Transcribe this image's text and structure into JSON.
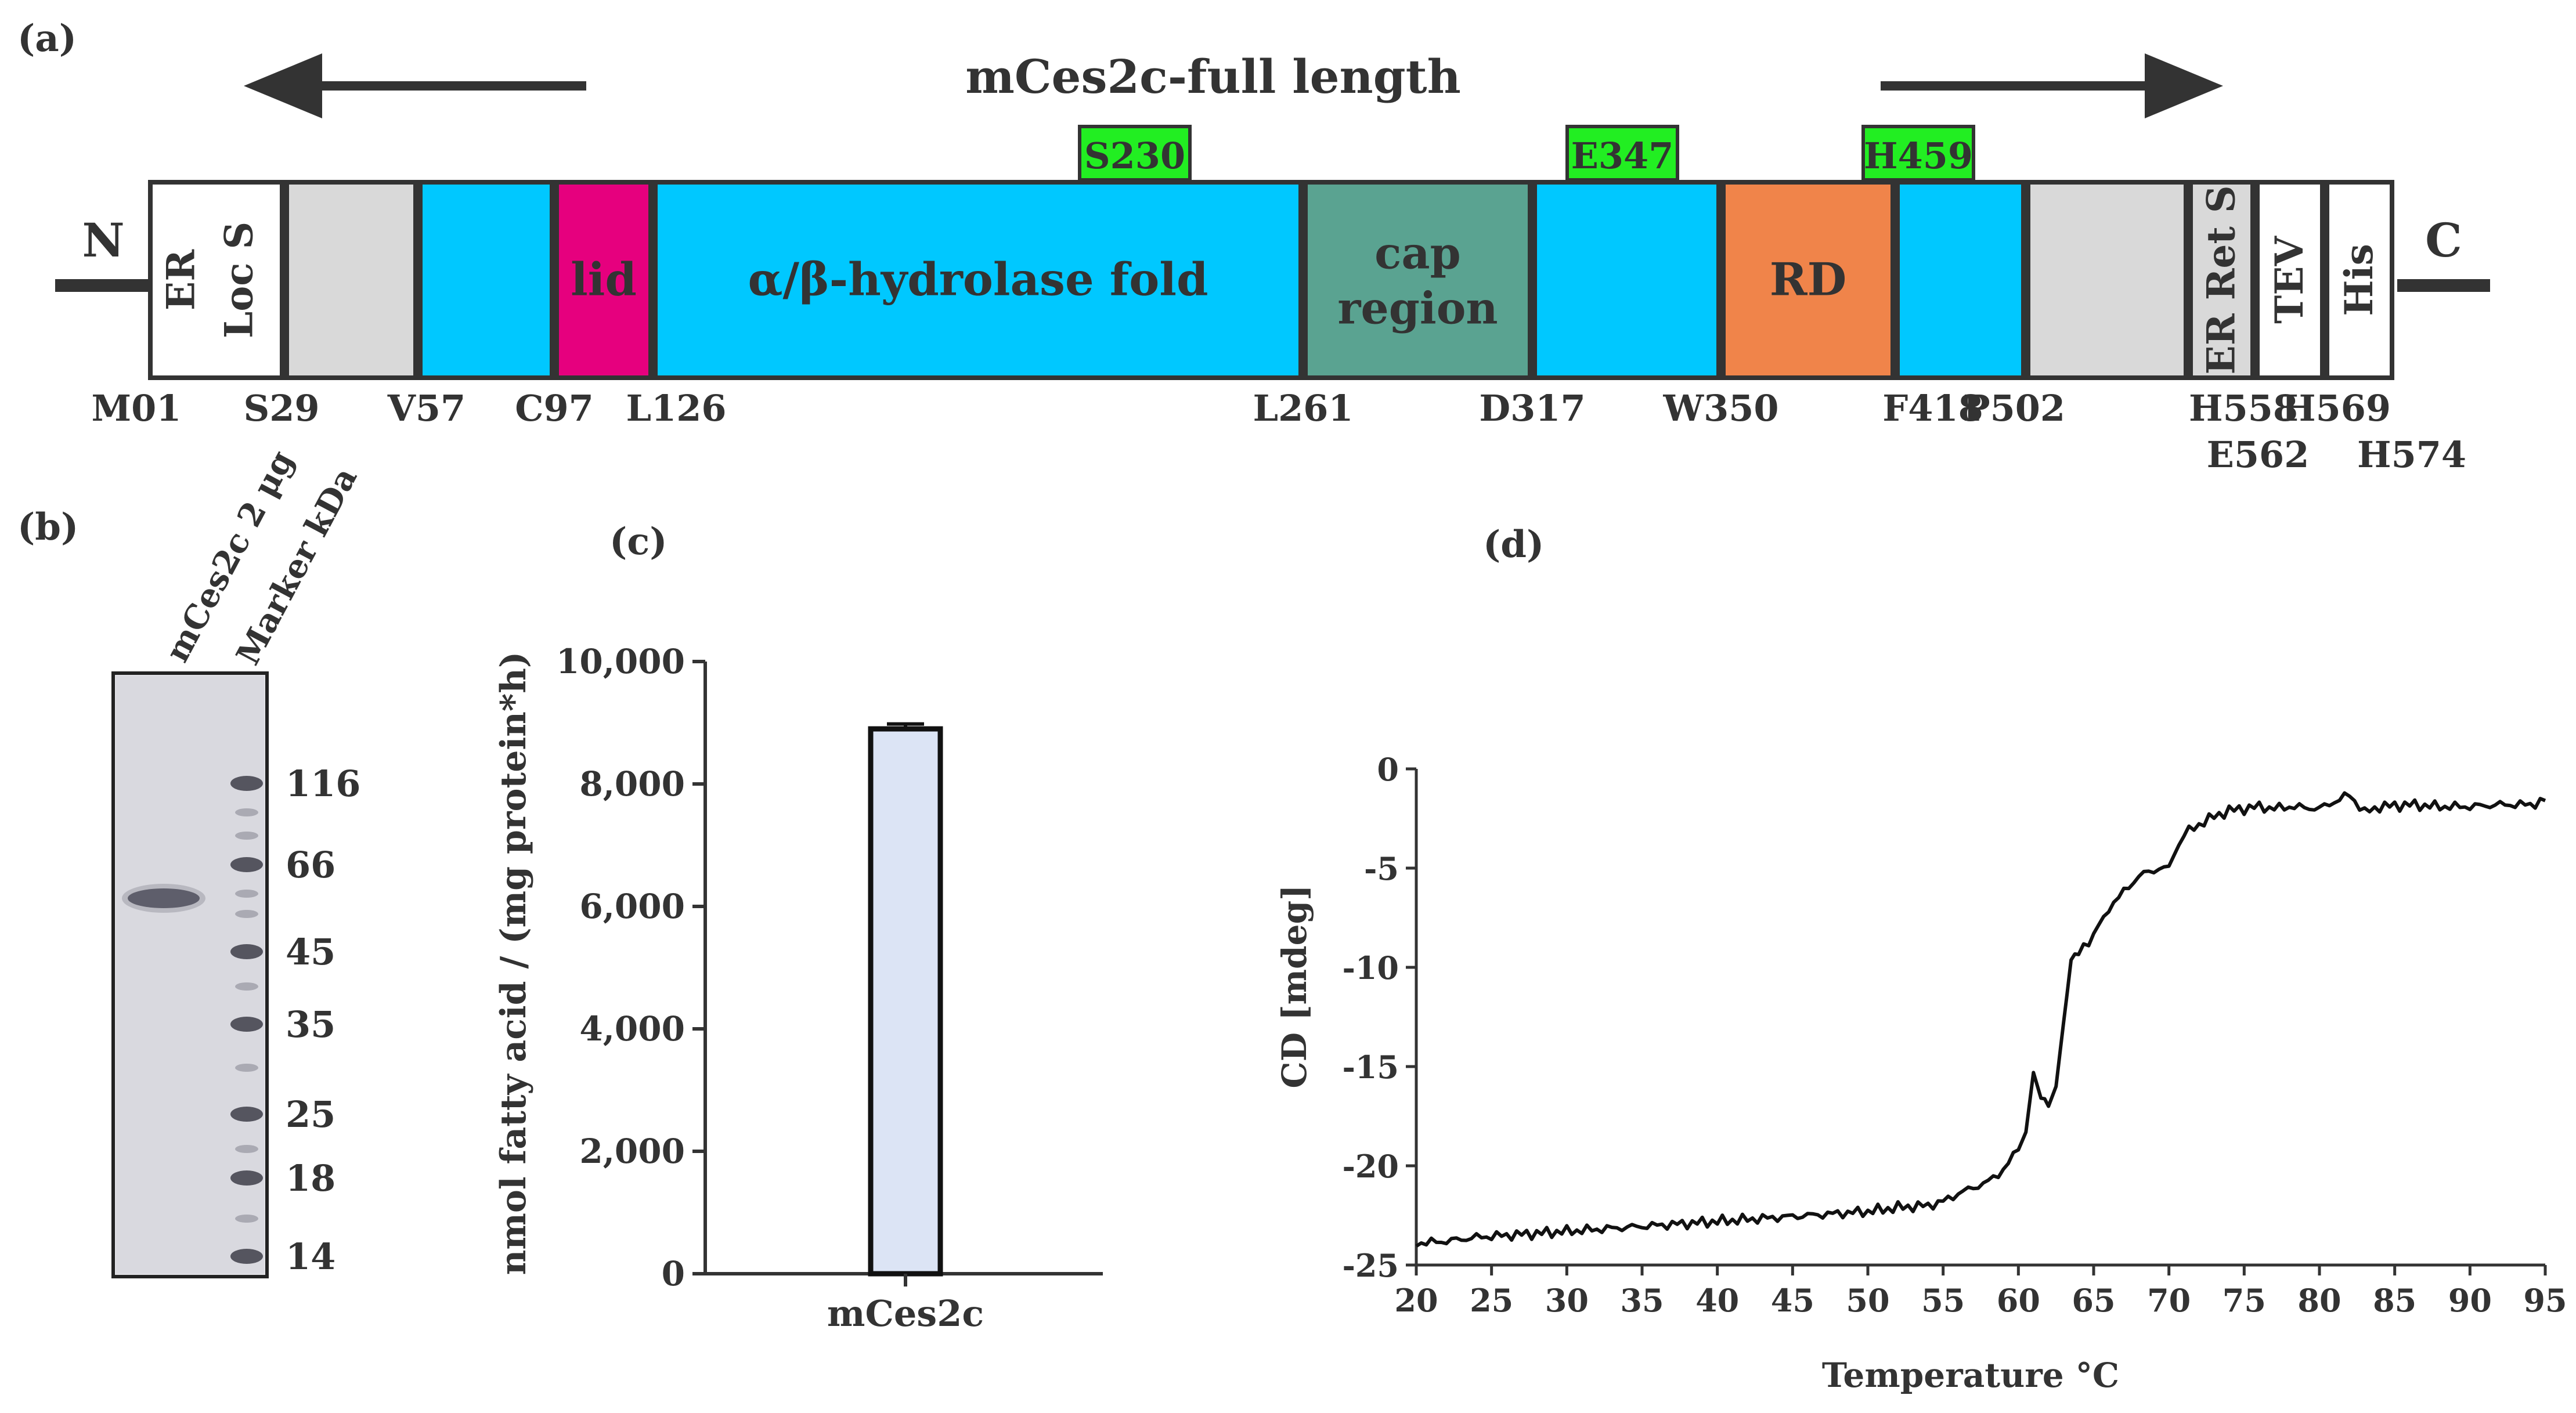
{
  "panel_a": {
    "label": "(a)",
    "title": "mCes2c-full length",
    "n_term": "N",
    "c_term": "C",
    "segments": [
      {
        "text": "ER",
        "text2": "Loc S",
        "color": "#ffffff",
        "vertical": true
      },
      {
        "text": "",
        "color": "#d9d9d9"
      },
      {
        "text": "",
        "color": "#00c8ff"
      },
      {
        "text": "lid",
        "color": "#e6007e"
      },
      {
        "text": "α/β-hydrolase fold",
        "color": "#00c8ff"
      },
      {
        "text": "cap",
        "text2": "region",
        "color": "#5aa391"
      },
      {
        "text": "",
        "color": "#00c8ff"
      },
      {
        "text": "RD",
        "color": "#f0844a"
      },
      {
        "text": "",
        "color": "#00c8ff"
      },
      {
        "text": "",
        "color": "#d9d9d9"
      },
      {
        "text": "ER Ret S",
        "color": "#d9d9d9",
        "vertical": true
      },
      {
        "text": "TEV",
        "color": "#ffffff",
        "vertical": true
      },
      {
        "text": "His",
        "color": "#ffffff",
        "vertical": true
      }
    ],
    "active_sites": [
      "S230",
      "E347",
      "H459"
    ],
    "active_site_color": "#22ee22",
    "residues": [
      "M01",
      "S29",
      "V57",
      "C97",
      "L126",
      "L261",
      "D317",
      "W350",
      "F418",
      "P502",
      "H558",
      "H569"
    ],
    "residues_row2": [
      "E562",
      "H574"
    ]
  },
  "panel_b": {
    "label": "(b)",
    "lane_labels": [
      "mCes2c 2 μg",
      "Marker kDa"
    ],
    "marker_kda": [
      "116",
      "66",
      "45",
      "35",
      "25",
      "18",
      "14"
    ]
  },
  "panel_c": {
    "label": "(c)",
    "chart_data": {
      "type": "bar",
      "categories": [
        "mCes2c"
      ],
      "values": [
        8900
      ],
      "error": [
        80
      ],
      "ylabel": "nmol fatty acid / (mg protein*h)",
      "ylim": [
        0,
        10000
      ],
      "yticks": [
        "0",
        "2,000",
        "4,000",
        "6,000",
        "8,000",
        "10,000"
      ],
      "bar_color": "#dce4f5"
    }
  },
  "panel_d": {
    "label": "(d)",
    "chart_data": {
      "type": "line",
      "xlabel": "Temperature °C",
      "ylabel": "CD [mdeg]",
      "xlim": [
        20,
        95
      ],
      "ylim": [
        -25,
        0
      ],
      "xticks": [
        "20",
        "25",
        "30",
        "35",
        "40",
        "45",
        "50",
        "55",
        "60",
        "65",
        "70",
        "75",
        "80",
        "85",
        "90",
        "95"
      ],
      "yticks": [
        "0",
        "-5",
        "-10",
        "-15",
        "-20",
        "-25"
      ],
      "x": [
        20,
        22,
        24,
        26,
        28,
        30,
        32,
        34,
        36,
        38,
        40,
        42,
        44,
        46,
        48,
        50,
        52,
        54,
        55,
        56,
        58,
        59,
        60,
        60.5,
        61,
        61.5,
        62,
        62.5,
        63,
        63.5,
        64,
        65,
        66,
        67,
        68,
        69,
        70,
        71,
        72,
        73,
        74,
        75,
        76,
        77,
        78,
        80,
        82,
        83,
        84,
        86,
        88,
        90,
        92,
        94,
        95
      ],
      "y": [
        -23.9,
        -23.8,
        -23.6,
        -23.5,
        -23.4,
        -23.3,
        -23.2,
        -23.1,
        -23.0,
        -22.9,
        -22.8,
        -22.7,
        -22.6,
        -22.5,
        -22.4,
        -22.3,
        -22.1,
        -22.0,
        -21.8,
        -21.4,
        -20.8,
        -20.2,
        -19.2,
        -18.3,
        -15.3,
        -16.6,
        -17.0,
        -16.0,
        -12.8,
        -9.7,
        -9.3,
        -8.3,
        -7.0,
        -6.2,
        -5.4,
        -5.1,
        -4.9,
        -3.3,
        -2.8,
        -2.4,
        -2.1,
        -2.0,
        -1.9,
        -2.0,
        -1.9,
        -2.0,
        -1.3,
        -2.2,
        -1.9,
        -1.8,
        -1.9,
        -1.9,
        -1.8,
        -1.8,
        -1.6
      ]
    }
  }
}
